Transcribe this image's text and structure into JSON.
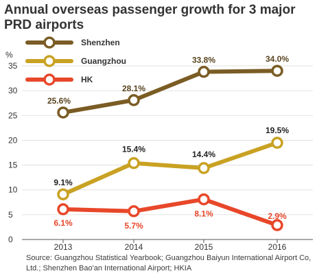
{
  "chart_data": {
    "type": "line",
    "title": "Annual overseas passenger growth for 3 major PRD airports",
    "ylabel": "%",
    "xlabel": "",
    "ylim": [
      0,
      35
    ],
    "yticks": [
      "0",
      "5",
      "10",
      "15",
      "20",
      "25",
      "30",
      "35"
    ],
    "categories": [
      "2013",
      "2014",
      "2015",
      "2016"
    ],
    "grid": true,
    "legend": "top-left",
    "series": [
      {
        "name": "Shenzhen",
        "color": "#7a5c24",
        "values": [
          25.6,
          28.1,
          33.8,
          34.0
        ],
        "labels": [
          "25.6%",
          "28.1%",
          "33.8%",
          "34.0%"
        ],
        "label_color": "#5a4420"
      },
      {
        "name": "Guangzhou",
        "color": "#c9a223",
        "values": [
          9.1,
          15.4,
          14.4,
          19.5
        ],
        "labels": [
          "9.1%",
          "15.4%",
          "14.4%",
          "19.5%"
        ],
        "label_color": "#222222"
      },
      {
        "name": "HK",
        "color": "#e8472a",
        "values": [
          6.1,
          5.7,
          8.1,
          2.9
        ],
        "labels": [
          "6.1%",
          "5.7%",
          "8.1%",
          "2.9%"
        ],
        "label_color": "#e8472a"
      }
    ]
  },
  "source": "Source: Guangzhou Statistical Yearbook; Guangzhou Baiyun International Airport Co, Ltd.; Shenzhen Bao'an International Airport; HKIA"
}
